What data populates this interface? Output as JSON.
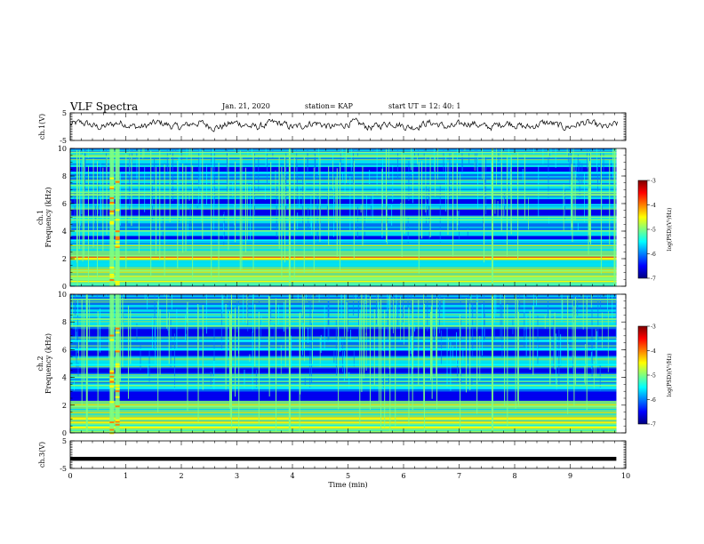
{
  "header": {
    "title": "VLF Spectra",
    "date": "Jan. 21, 2020",
    "station": "station= KAP",
    "start": "start UT =  12: 40: 1"
  },
  "chart_data": [
    {
      "type": "line",
      "panel": "ch1-waveform",
      "ylabel": "ch.1(V)",
      "ylim": [
        -5,
        5
      ],
      "yticks": [
        5,
        -5
      ],
      "xlim": [
        0,
        10
      ],
      "series": [
        {
          "description": "noisy waveform oscillating roughly between -2 and 3 V"
        }
      ]
    },
    {
      "type": "heatmap",
      "panel": "ch1-spectrogram",
      "ylabel_line1": "ch.1",
      "ylabel_line2": "Frequency (kHz)",
      "ylim": [
        0,
        10
      ],
      "yticks": [
        0,
        2,
        4,
        6,
        8,
        10
      ],
      "xlim": [
        0,
        10
      ],
      "strong_bands_khz": [
        0.5,
        1.1,
        2.0,
        2.2,
        3.3,
        4.0,
        4.8,
        5.0,
        5.9,
        6.6,
        6.8,
        7.3,
        8.2,
        9.4,
        9.7
      ],
      "dark_gaps_khz": [
        [
          3.4,
          3.7
        ],
        [
          5.2,
          5.6
        ],
        [
          5.9,
          6.3
        ],
        [
          8.3,
          8.7
        ]
      ],
      "burst_times_min": [
        0.75,
        0.85,
        3.95,
        7.6,
        9.8
      ],
      "colorbar": {
        "label": "log(PSD)(V²/Hz)",
        "range": [
          -7,
          -3
        ],
        "ticks": [
          "-3",
          "-4",
          "-5",
          "-6",
          "-7"
        ]
      }
    },
    {
      "type": "heatmap",
      "panel": "ch2-spectrogram",
      "ylabel_line1": "ch.2",
      "ylabel_line2": "Frequency (kHz)",
      "ylim": [
        0,
        10
      ],
      "yticks": [
        0,
        2,
        4,
        6,
        8,
        10
      ],
      "xlim": [
        0,
        10
      ],
      "strong_bands_khz": [
        0.4,
        1.0,
        1.9,
        3.2,
        3.4,
        4.0,
        4.9,
        6.0,
        6.6,
        7.7,
        8.2,
        9.6
      ],
      "dark_gaps_khz": [
        [
          2.3,
          3.0
        ],
        [
          4.3,
          4.7
        ],
        [
          5.6,
          5.9
        ],
        [
          7.0,
          7.5
        ]
      ],
      "burst_times_min": [
        0.3,
        0.75,
        0.85,
        3.95,
        7.6
      ],
      "colorbar": {
        "label": "log(PSD)(V²/Hz)",
        "range": [
          -7,
          -3
        ],
        "ticks": [
          "-3",
          "-4",
          "-5",
          "-6",
          "-7"
        ]
      }
    },
    {
      "type": "line",
      "panel": "ch3-waveform",
      "ylabel": "ch.3(V)",
      "ylim": [
        -5,
        5
      ],
      "yticks": [
        5,
        -5
      ],
      "xlim": [
        0,
        10
      ],
      "series": [
        {
          "values_constant": -1.5
        }
      ]
    }
  ],
  "xaxis": {
    "label": "Time (min)",
    "ticks": [
      "0",
      "1",
      "2",
      "3",
      "4",
      "5",
      "6",
      "7",
      "8",
      "9",
      "10"
    ]
  },
  "colormap": [
    "#00007f",
    "#0000ff",
    "#007fff",
    "#00ffff",
    "#7fff7f",
    "#ffff00",
    "#ff7f00",
    "#ff0000",
    "#7f0000"
  ]
}
